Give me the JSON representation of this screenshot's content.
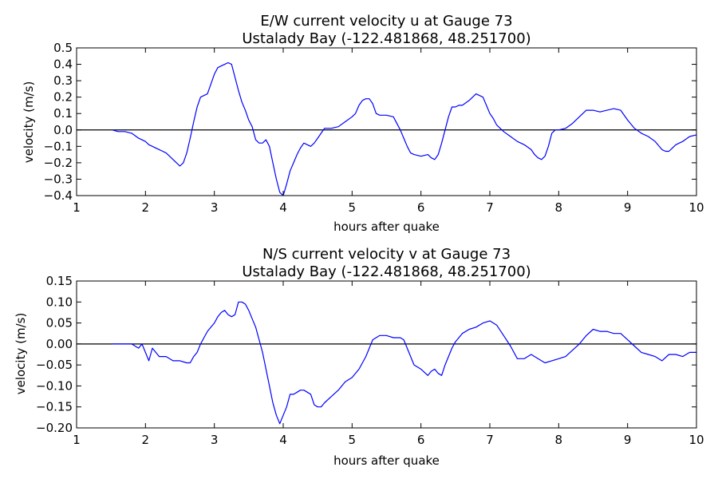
{
  "chart_data": [
    {
      "type": "line",
      "title": "E/W current velocity u at Gauge 73",
      "subtitle": "Ustalady Bay  (-122.481868, 48.251700)",
      "xlabel": "hours after quake",
      "ylabel": "velocity (m/s)",
      "xlim": [
        1,
        10
      ],
      "ylim": [
        -0.4,
        0.5
      ],
      "xticks": [
        "1",
        "2",
        "3",
        "4",
        "5",
        "6",
        "7",
        "8",
        "9",
        "10"
      ],
      "yticks": [
        "−0.4",
        "−0.3",
        "−0.2",
        "−0.1",
        "0.0",
        "0.1",
        "0.2",
        "0.3",
        "0.4",
        "0.5"
      ],
      "grid": false,
      "zero_line": 0,
      "line_color": "#0000ff",
      "series": [
        {
          "x": [
            1.52,
            1.6,
            1.7,
            1.8,
            1.9,
            2.0,
            2.05,
            2.1,
            2.15,
            2.2,
            2.25,
            2.3,
            2.35,
            2.4,
            2.45,
            2.5,
            2.55,
            2.6,
            2.65,
            2.7,
            2.75,
            2.8,
            2.85,
            2.9,
            2.95,
            3.0,
            3.05,
            3.1,
            3.15,
            3.2,
            3.25,
            3.3,
            3.35,
            3.4,
            3.45,
            3.5,
            3.55,
            3.6,
            3.65,
            3.7,
            3.75,
            3.8,
            3.85,
            3.9,
            3.95,
            4.0,
            4.05,
            4.1,
            4.15,
            4.2,
            4.25,
            4.3,
            4.35,
            4.4,
            4.45,
            4.5,
            4.55,
            4.6,
            4.65,
            4.7,
            4.8,
            4.9,
            5.0,
            5.05,
            5.1,
            5.15,
            5.2,
            5.25,
            5.3,
            5.35,
            5.4,
            5.5,
            5.6,
            5.7,
            5.75,
            5.8,
            5.85,
            5.9,
            6.0,
            6.1,
            6.15,
            6.2,
            6.25,
            6.3,
            6.35,
            6.4,
            6.45,
            6.5,
            6.55,
            6.6,
            6.7,
            6.8,
            6.9,
            6.95,
            7.0,
            7.05,
            7.1,
            7.2,
            7.3,
            7.4,
            7.5,
            7.6,
            7.65,
            7.7,
            7.75,
            7.8,
            7.85,
            7.9,
            7.95,
            8.0,
            8.1,
            8.2,
            8.3,
            8.4,
            8.5,
            8.6,
            8.7,
            8.8,
            8.9,
            9.0,
            9.1,
            9.2,
            9.3,
            9.4,
            9.5,
            9.55,
            9.6,
            9.65,
            9.7,
            9.8,
            9.9,
            10.0
          ],
          "values": [
            0.0,
            -0.01,
            -0.01,
            -0.02,
            -0.05,
            -0.07,
            -0.09,
            -0.1,
            -0.11,
            -0.12,
            -0.13,
            -0.14,
            -0.16,
            -0.18,
            -0.2,
            -0.22,
            -0.2,
            -0.14,
            -0.05,
            0.05,
            0.14,
            0.2,
            0.21,
            0.22,
            0.28,
            0.34,
            0.38,
            0.39,
            0.4,
            0.41,
            0.4,
            0.32,
            0.24,
            0.17,
            0.12,
            0.06,
            0.02,
            -0.06,
            -0.08,
            -0.08,
            -0.06,
            -0.1,
            -0.2,
            -0.3,
            -0.38,
            -0.4,
            -0.33,
            -0.25,
            -0.2,
            -0.15,
            -0.11,
            -0.08,
            -0.09,
            -0.1,
            -0.08,
            -0.05,
            -0.02,
            0.01,
            0.01,
            0.01,
            0.02,
            0.05,
            0.08,
            0.1,
            0.15,
            0.18,
            0.19,
            0.19,
            0.16,
            0.1,
            0.09,
            0.09,
            0.08,
            0.0,
            -0.05,
            -0.1,
            -0.14,
            -0.15,
            -0.16,
            -0.15,
            -0.17,
            -0.18,
            -0.15,
            -0.08,
            0.0,
            0.08,
            0.14,
            0.14,
            0.15,
            0.15,
            0.18,
            0.22,
            0.2,
            0.15,
            0.1,
            0.07,
            0.03,
            -0.01,
            -0.04,
            -0.07,
            -0.09,
            -0.12,
            -0.15,
            -0.17,
            -0.18,
            -0.16,
            -0.1,
            -0.02,
            0.0,
            0.0,
            0.01,
            0.04,
            0.08,
            0.12,
            0.12,
            0.11,
            0.12,
            0.13,
            0.12,
            0.06,
            0.01,
            -0.02,
            -0.04,
            -0.07,
            -0.12,
            -0.13,
            -0.13,
            -0.11,
            -0.09,
            -0.07,
            -0.04,
            -0.03
          ]
        }
      ]
    },
    {
      "type": "line",
      "title": "N/S current velocity v at Gauge 73",
      "subtitle": "Ustalady Bay  (-122.481868, 48.251700)",
      "xlabel": "hours after quake",
      "ylabel": "velocity (m/s)",
      "xlim": [
        1,
        10
      ],
      "ylim": [
        -0.2,
        0.15
      ],
      "xticks": [
        "1",
        "2",
        "3",
        "4",
        "5",
        "6",
        "7",
        "8",
        "9",
        "10"
      ],
      "yticks": [
        "−0.20",
        "−0.15",
        "−0.10",
        "−0.05",
        "0.00",
        "0.05",
        "0.10",
        "0.15"
      ],
      "grid": false,
      "zero_line": 0,
      "line_color": "#0000ff",
      "series": [
        {
          "x": [
            1.52,
            1.6,
            1.7,
            1.8,
            1.9,
            1.95,
            2.0,
            2.05,
            2.1,
            2.15,
            2.2,
            2.3,
            2.4,
            2.5,
            2.6,
            2.65,
            2.7,
            2.75,
            2.8,
            2.85,
            2.9,
            2.95,
            3.0,
            3.05,
            3.1,
            3.15,
            3.2,
            3.25,
            3.3,
            3.35,
            3.4,
            3.45,
            3.5,
            3.55,
            3.6,
            3.65,
            3.7,
            3.75,
            3.8,
            3.85,
            3.9,
            3.95,
            4.0,
            4.05,
            4.1,
            4.15,
            4.2,
            4.25,
            4.3,
            4.35,
            4.4,
            4.45,
            4.5,
            4.55,
            4.6,
            4.7,
            4.8,
            4.9,
            5.0,
            5.1,
            5.2,
            5.3,
            5.4,
            5.5,
            5.6,
            5.7,
            5.75,
            5.8,
            5.85,
            5.9,
            6.0,
            6.1,
            6.15,
            6.2,
            6.25,
            6.3,
            6.35,
            6.4,
            6.45,
            6.5,
            6.6,
            6.7,
            6.8,
            6.9,
            7.0,
            7.1,
            7.2,
            7.3,
            7.4,
            7.5,
            7.6,
            7.7,
            7.8,
            7.9,
            8.0,
            8.1,
            8.2,
            8.3,
            8.4,
            8.5,
            8.6,
            8.7,
            8.8,
            8.9,
            9.0,
            9.1,
            9.2,
            9.3,
            9.4,
            9.5,
            9.6,
            9.7,
            9.8,
            9.9,
            10.0
          ],
          "values": [
            0.0,
            0.0,
            0.0,
            0.0,
            -0.01,
            0.0,
            -0.02,
            -0.04,
            -0.01,
            -0.02,
            -0.03,
            -0.03,
            -0.04,
            -0.04,
            -0.045,
            -0.045,
            -0.03,
            -0.02,
            0.0,
            0.015,
            0.03,
            0.04,
            0.05,
            0.065,
            0.075,
            0.08,
            0.07,
            0.065,
            0.07,
            0.1,
            0.1,
            0.095,
            0.08,
            0.06,
            0.04,
            0.01,
            -0.02,
            -0.06,
            -0.1,
            -0.14,
            -0.17,
            -0.19,
            -0.17,
            -0.15,
            -0.12,
            -0.12,
            -0.115,
            -0.11,
            -0.11,
            -0.115,
            -0.12,
            -0.145,
            -0.15,
            -0.15,
            -0.14,
            -0.125,
            -0.11,
            -0.09,
            -0.08,
            -0.06,
            -0.03,
            0.01,
            0.02,
            0.02,
            0.015,
            0.015,
            0.01,
            -0.01,
            -0.03,
            -0.05,
            -0.06,
            -0.075,
            -0.065,
            -0.06,
            -0.07,
            -0.075,
            -0.05,
            -0.03,
            -0.01,
            0.005,
            0.025,
            0.035,
            0.04,
            0.05,
            0.055,
            0.045,
            0.02,
            -0.005,
            -0.035,
            -0.035,
            -0.025,
            -0.035,
            -0.045,
            -0.04,
            -0.035,
            -0.03,
            -0.015,
            0.0,
            0.02,
            0.035,
            0.03,
            0.03,
            0.025,
            0.025,
            0.01,
            -0.005,
            -0.02,
            -0.025,
            -0.03,
            -0.04,
            -0.025,
            -0.025,
            -0.03,
            -0.02,
            -0.02
          ]
        }
      ]
    }
  ]
}
